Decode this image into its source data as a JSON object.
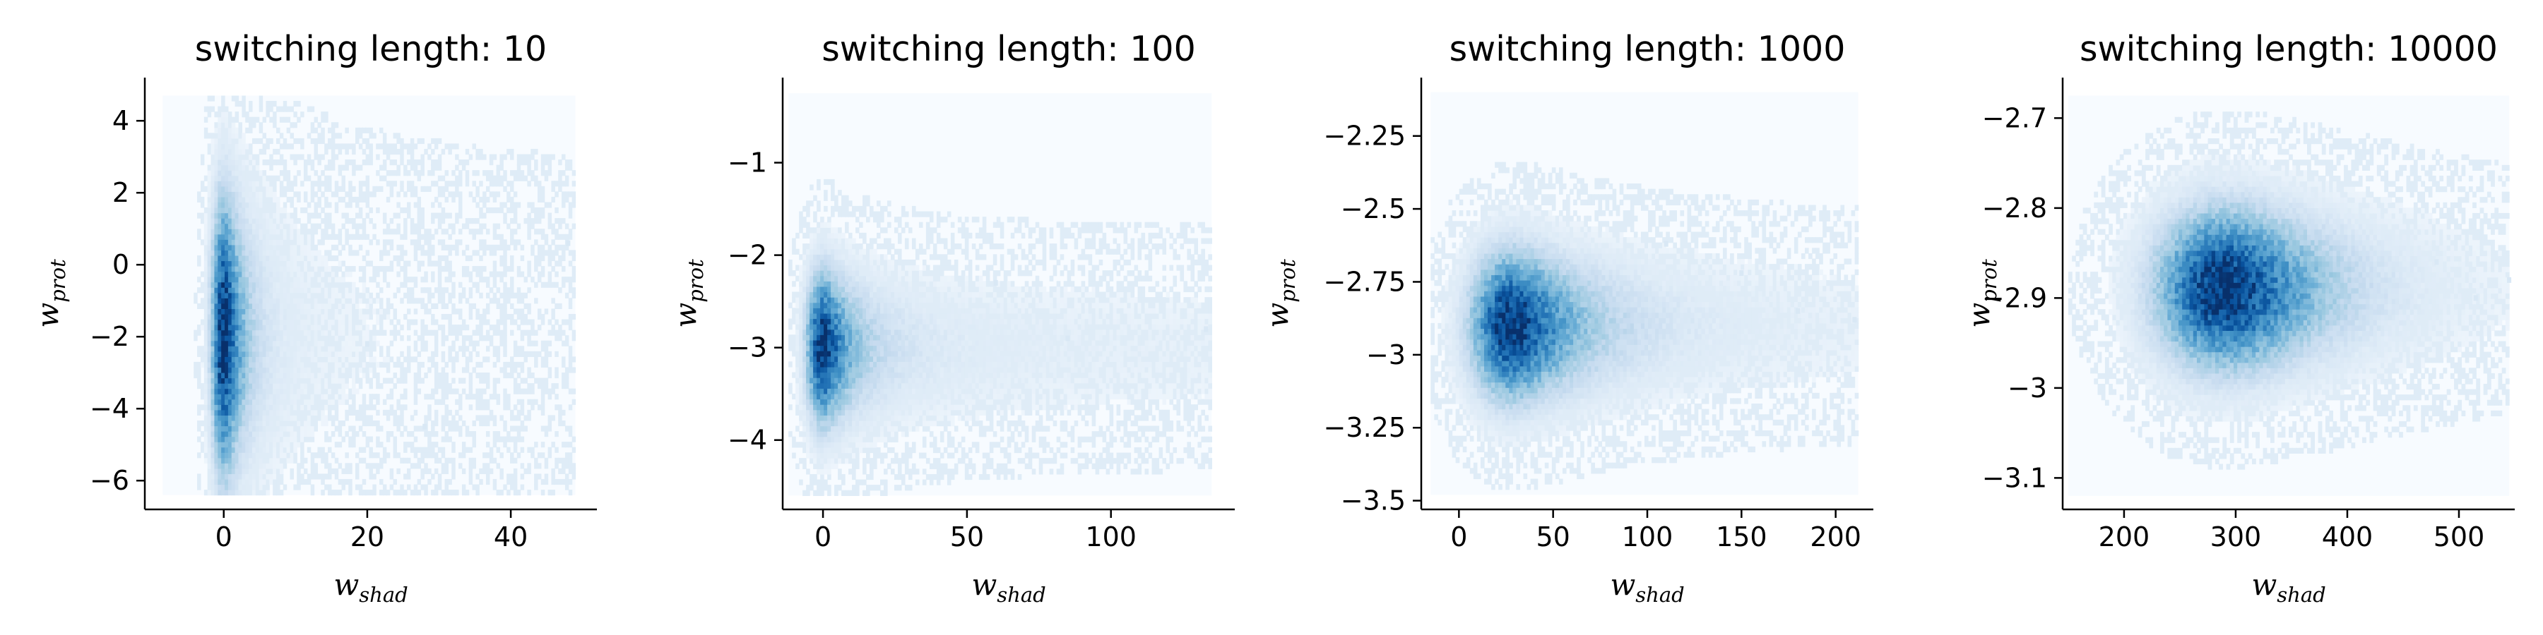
{
  "chart_data": [
    {
      "type": "heatmap",
      "title": "switching length: 10",
      "xlabel": {
        "base": "w",
        "sub": "shad"
      },
      "ylabel": {
        "base": "w",
        "sub": "prot"
      },
      "xlim": [
        -11,
        52
      ],
      "ylim": [
        -6.8,
        5.2
      ],
      "xticks": [
        0,
        20,
        40
      ],
      "yticks": [
        4,
        2,
        0,
        -2,
        -4,
        -6
      ],
      "extent": {
        "x": [
          -8.5,
          49
        ],
        "y": [
          -6.4,
          4.7
        ]
      },
      "density_peak": {
        "x": 0,
        "y": -2.0
      },
      "spread": {
        "x": 1.2,
        "y": 2.6
      },
      "skew_x": 5,
      "outliers": [
        {
          "x": 20,
          "y": -2.2
        },
        {
          "x": 28,
          "y": -4.5
        },
        {
          "x": 48,
          "y": 0.6
        }
      ],
      "colormap": "Blues",
      "grid": false
    },
    {
      "type": "heatmap",
      "title": "switching length: 100",
      "xlabel": {
        "base": "w",
        "sub": "shad"
      },
      "ylabel": {
        "base": "w",
        "sub": "prot"
      },
      "xlim": [
        -14,
        143
      ],
      "ylim": [
        -4.75,
        -0.08
      ],
      "xticks": [
        0,
        50,
        100
      ],
      "yticks": [
        -1,
        -2,
        -3,
        -4
      ],
      "extent": {
        "x": [
          -12,
          135
        ],
        "y": [
          -4.6,
          -0.25
        ]
      },
      "density_peak": {
        "x": 0,
        "y": -3.0
      },
      "spread": {
        "x": 4,
        "y": 0.55
      },
      "skew_x": 15,
      "outliers": [
        {
          "x": 60,
          "y": -2.3
        },
        {
          "x": 85,
          "y": -2.9
        },
        {
          "x": 133,
          "y": -2.8
        }
      ],
      "colormap": "Blues",
      "grid": false
    },
    {
      "type": "heatmap",
      "title": "switching length: 1000",
      "xlabel": {
        "base": "w",
        "sub": "shad"
      },
      "ylabel": {
        "base": "w",
        "sub": "prot"
      },
      "xlim": [
        -20,
        220
      ],
      "ylim": [
        -3.53,
        -2.05
      ],
      "xticks": [
        0,
        50,
        100,
        150,
        200
      ],
      "yticks": [
        -2.25,
        -2.5,
        -2.75,
        -3.0,
        -3.25,
        -3.5
      ],
      "extent": {
        "x": [
          -15,
          212
        ],
        "y": [
          -3.48,
          -2.1
        ]
      },
      "density_peak": {
        "x": 28,
        "y": -2.9
      },
      "spread": {
        "x": 15,
        "y": 0.17
      },
      "skew_x": 20,
      "outliers": [
        {
          "x": 110,
          "y": -2.62
        },
        {
          "x": 150,
          "y": -2.72
        },
        {
          "x": 180,
          "y": -2.85
        },
        {
          "x": 210,
          "y": -2.88
        }
      ],
      "colormap": "Blues",
      "grid": false
    },
    {
      "type": "heatmap",
      "title": "switching length: 10000",
      "xlabel": {
        "base": "w",
        "sub": "shad"
      },
      "ylabel": {
        "base": "w",
        "sub": "prot"
      },
      "xlim": [
        145,
        550
      ],
      "ylim": [
        -3.135,
        -2.655
      ],
      "xticks": [
        200,
        300,
        400,
        500
      ],
      "yticks": [
        -2.7,
        -2.8,
        -2.9,
        -3.0,
        -3.1
      ],
      "extent": {
        "x": [
          150,
          545
        ],
        "y": [
          -3.12,
          -2.675
        ]
      },
      "density_peak": {
        "x": 290,
        "y": -2.89
      },
      "spread": {
        "x": 42,
        "y": 0.06
      },
      "skew_x": 25,
      "outliers": [
        {
          "x": 480,
          "y": -2.86
        },
        {
          "x": 515,
          "y": -2.9
        },
        {
          "x": 545,
          "y": -2.88
        }
      ],
      "colormap": "Blues",
      "grid": false
    }
  ]
}
